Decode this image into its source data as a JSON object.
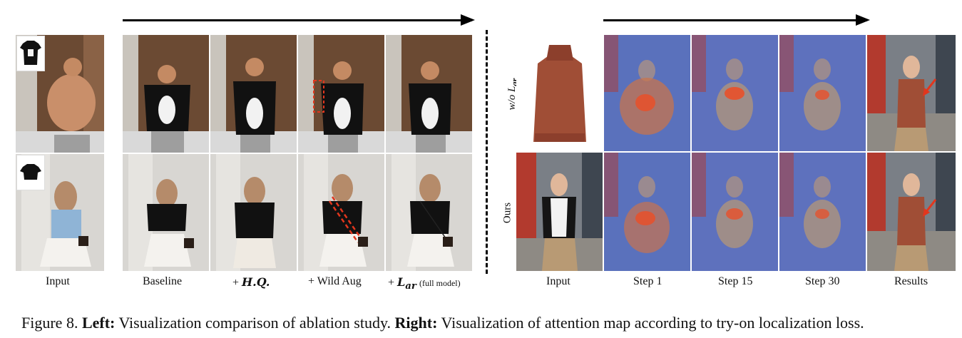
{
  "left_panel": {
    "col_labels": {
      "input": "Input",
      "baseline": "Baseline",
      "hq_prefix": "+",
      "hq": "H.Q.",
      "wild_aug": "+ Wild Aug",
      "lar_prefix": "+",
      "lar": "L",
      "lar_sub": "ar",
      "full_model": "(full model)"
    }
  },
  "right_panel": {
    "row_labels": {
      "wo_lar": "w/o L",
      "wo_lar_sub": "ar",
      "ours": "Ours"
    },
    "col_labels": {
      "input": "Input",
      "step1": "Step 1",
      "step15": "Step 15",
      "step30": "Step 30",
      "results": "Results"
    }
  },
  "caption": {
    "prefix": "Figure 8.",
    "left_bold": "Left:",
    "left_text": "Visualization comparison of ablation study.",
    "right_bold": "Right:",
    "right_text": "Visualization of attention map according to try-on localization loss."
  },
  "colors": {
    "bathroom_wall": "#6b4a33",
    "tshirt": "#111111",
    "door": "#d8d6d2",
    "street_sky": "#9aa6b2",
    "top_rust": "#a04e36",
    "attention_blue": "#4a62b8",
    "attention_hot": "#e8502a",
    "arrow_red": "#e2361d"
  }
}
